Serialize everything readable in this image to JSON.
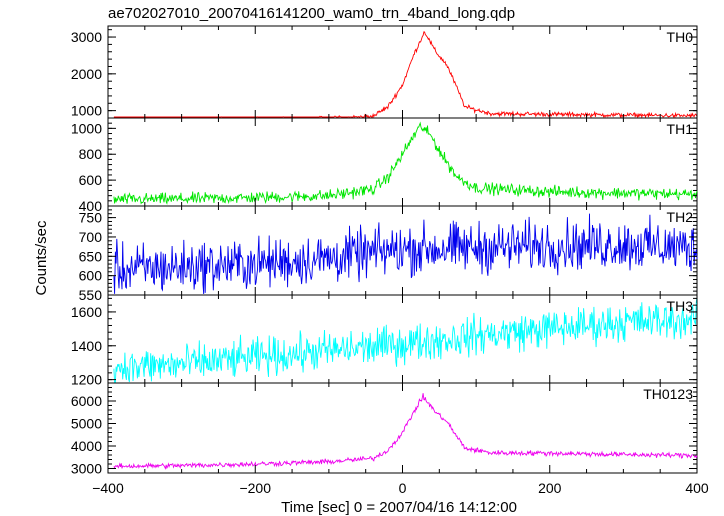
{
  "chart_data": {
    "type": "line",
    "title": "ae702027010_20070416141200_wam0_trn_4band_long.qdp",
    "xlabel": "Time [sec] 0 = 2007/04/16 14:12:00",
    "ylabel": "Counts/sec",
    "xlim": [
      -400,
      400
    ],
    "x_ticks": [
      -400,
      -200,
      0,
      200,
      400
    ],
    "x_tick_labels": [
      "−400",
      "−200",
      "0",
      "200",
      "400"
    ],
    "panels": [
      {
        "name": "TH0",
        "color": "#ff0000",
        "ylim": [
          800,
          3300
        ],
        "y_ticks": [
          1000,
          2000,
          3000
        ],
        "series": [
          {
            "x": -390,
            "y": 730
          },
          {
            "x": -300,
            "y": 740
          },
          {
            "x": -200,
            "y": 760
          },
          {
            "x": -100,
            "y": 780
          },
          {
            "x": -40,
            "y": 850
          },
          {
            "x": -20,
            "y": 1100
          },
          {
            "x": 0,
            "y": 1700
          },
          {
            "x": 15,
            "y": 2500
          },
          {
            "x": 30,
            "y": 3150
          },
          {
            "x": 45,
            "y": 2600
          },
          {
            "x": 60,
            "y": 2250
          },
          {
            "x": 70,
            "y": 1800
          },
          {
            "x": 85,
            "y": 1100
          },
          {
            "x": 120,
            "y": 920
          },
          {
            "x": 200,
            "y": 900
          },
          {
            "x": 300,
            "y": 880
          },
          {
            "x": 400,
            "y": 860
          }
        ],
        "noise": 30
      },
      {
        "name": "TH1",
        "color": "#00e600",
        "ylim": [
          400,
          1080
        ],
        "y_ticks": [
          400,
          600,
          800,
          1000
        ],
        "series": [
          {
            "x": -390,
            "y": 450
          },
          {
            "x": -300,
            "y": 455
          },
          {
            "x": -200,
            "y": 465
          },
          {
            "x": -100,
            "y": 480
          },
          {
            "x": -40,
            "y": 530
          },
          {
            "x": -20,
            "y": 620
          },
          {
            "x": 0,
            "y": 800
          },
          {
            "x": 15,
            "y": 940
          },
          {
            "x": 25,
            "y": 1020
          },
          {
            "x": 40,
            "y": 930
          },
          {
            "x": 55,
            "y": 780
          },
          {
            "x": 75,
            "y": 620
          },
          {
            "x": 100,
            "y": 540
          },
          {
            "x": 200,
            "y": 510
          },
          {
            "x": 300,
            "y": 500
          },
          {
            "x": 400,
            "y": 490
          }
        ],
        "noise": 22
      },
      {
        "name": "TH2",
        "color": "#0000ee",
        "ylim": [
          550,
          780
        ],
        "y_ticks": [
          550,
          600,
          650,
          700,
          750
        ],
        "series": [
          {
            "x": -390,
            "y": 615
          },
          {
            "x": -200,
            "y": 630
          },
          {
            "x": -100,
            "y": 645
          },
          {
            "x": 0,
            "y": 668
          },
          {
            "x": 100,
            "y": 672
          },
          {
            "x": 200,
            "y": 678
          },
          {
            "x": 300,
            "y": 680
          },
          {
            "x": 400,
            "y": 670
          }
        ],
        "noise": 32
      },
      {
        "name": "TH3",
        "color": "#00ffff",
        "ylim": [
          1180,
          1700
        ],
        "y_ticks": [
          1200,
          1400,
          1600
        ],
        "series": [
          {
            "x": -390,
            "y": 1270
          },
          {
            "x": -300,
            "y": 1290
          },
          {
            "x": -200,
            "y": 1330
          },
          {
            "x": -100,
            "y": 1370
          },
          {
            "x": 0,
            "y": 1410
          },
          {
            "x": 100,
            "y": 1460
          },
          {
            "x": 200,
            "y": 1500
          },
          {
            "x": 300,
            "y": 1540
          },
          {
            "x": 400,
            "y": 1555
          }
        ],
        "noise": 55
      },
      {
        "name": "TH0123",
        "color": "#ee00ee",
        "ylim": [
          2800,
          6800
        ],
        "y_ticks": [
          3000,
          4000,
          5000,
          6000
        ],
        "series": [
          {
            "x": -390,
            "y": 3100
          },
          {
            "x": -300,
            "y": 3130
          },
          {
            "x": -200,
            "y": 3200
          },
          {
            "x": -100,
            "y": 3300
          },
          {
            "x": -40,
            "y": 3450
          },
          {
            "x": -20,
            "y": 3800
          },
          {
            "x": 0,
            "y": 4600
          },
          {
            "x": 15,
            "y": 5500
          },
          {
            "x": 28,
            "y": 6200
          },
          {
            "x": 45,
            "y": 5500
          },
          {
            "x": 60,
            "y": 5100
          },
          {
            "x": 70,
            "y": 4600
          },
          {
            "x": 85,
            "y": 3900
          },
          {
            "x": 120,
            "y": 3700
          },
          {
            "x": 200,
            "y": 3680
          },
          {
            "x": 300,
            "y": 3620
          },
          {
            "x": 400,
            "y": 3580
          }
        ],
        "noise": 55
      }
    ]
  }
}
